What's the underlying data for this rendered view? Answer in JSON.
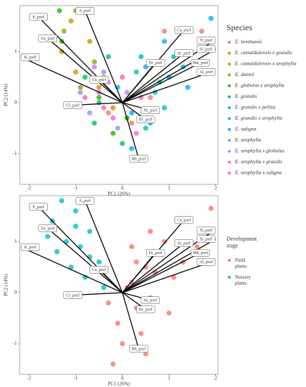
{
  "chart_data": [
    {
      "type": "scatter",
      "xlabel": "PC1 (26%)",
      "ylabel": "PC2 (14%)",
      "legend_title": "Species",
      "xlim": [
        -2.2,
        2.05
      ],
      "ylim": [
        -1.6,
        1.9
      ],
      "xticks": [
        -2,
        -1,
        0,
        1,
        2
      ],
      "yticks": [
        -1,
        0,
        1
      ],
      "series": [
        {
          "name": "E. benthamii",
          "color": "#F8766D",
          "x": [
            0.6,
            0.9,
            -0.3,
            0.2,
            1.7
          ],
          "y": [
            0.1,
            1.4,
            -0.2,
            -0.4,
            1.4
          ]
        },
        {
          "name": "E. camaldulensis x grandis",
          "color": "#E18A00",
          "x": [
            -1.0,
            -0.5,
            -0.2
          ],
          "y": [
            0.6,
            0.3,
            -0.1
          ]
        },
        {
          "name": "E. camaldulensis x urophylla",
          "color": "#BE9C00",
          "x": [
            -1.1,
            -0.7,
            -1.3,
            -0.4
          ],
          "y": [
            1.6,
            1.2,
            1.0,
            0.5
          ]
        },
        {
          "name": "E. dunnii",
          "color": "#8CAB00",
          "x": [
            -1.25,
            -0.6,
            -0.9,
            -1.0
          ],
          "y": [
            1.4,
            0.8,
            0.3,
            1.8
          ]
        },
        {
          "name": "E. globulus x urophylla",
          "color": "#24B700",
          "x": [
            -1.35,
            -0.2,
            0.1,
            -0.5,
            -1.3
          ],
          "y": [
            1.8,
            -0.6,
            -0.3,
            0.1,
            1.2
          ]
        },
        {
          "name": "E. grandis",
          "color": "#00BE70",
          "x": [
            -0.5,
            -0.8,
            0.0,
            -0.3,
            -0.6
          ],
          "y": [
            0.0,
            0.5,
            -0.8,
            0.9,
            -0.4
          ]
        },
        {
          "name": "E. grandis x pellita",
          "color": "#00C1AB",
          "x": [
            0.3,
            0.8,
            0.5,
            1.1
          ],
          "y": [
            0.6,
            0.4,
            -0.5,
            0.9
          ]
        },
        {
          "name": "E. grandis x urophylla",
          "color": "#00BBDA",
          "x": [
            0.7,
            1.3,
            0.4,
            0.9,
            -0.1
          ],
          "y": [
            0.2,
            0.7,
            0.9,
            -0.1,
            0.3
          ]
        },
        {
          "name": "E. saligna",
          "color": "#00ACFC",
          "x": [
            0.6,
            0.2,
            1.0,
            1.4,
            0.9,
            0.2,
            0.5,
            1.9
          ],
          "y": [
            -0.4,
            -0.9,
            0.5,
            0.3,
            1.2,
            -0.2,
            0.7,
            1.65
          ]
        },
        {
          "name": "E. urophylla",
          "color": "#8B93FF",
          "x": [
            -0.7,
            -0.4,
            -0.9,
            -0.1
          ],
          "y": [
            -0.2,
            0.6,
            0.2,
            -0.5
          ]
        },
        {
          "name": "E. urophylla x globulus",
          "color": "#D575FE",
          "x": [
            -0.3,
            0.1,
            -0.6
          ],
          "y": [
            0.4,
            0.2,
            0.7
          ]
        },
        {
          "name": "E. urophylla x grandis",
          "color": "#F962DD",
          "x": [
            -0.2,
            0.4,
            -0.5,
            0.3
          ],
          "y": [
            -0.3,
            0.1,
            0.2,
            -0.6
          ]
        },
        {
          "name": "E. urophylla x saligna",
          "color": "#FF65AC",
          "x": [
            -0.8,
            0.0,
            -0.4
          ],
          "y": [
            0.1,
            0.5,
            -0.1
          ]
        }
      ],
      "loadings": [
        {
          "name": "S_pxrf",
          "x": -0.8,
          "y": 1.8
        },
        {
          "name": "P_pxrf",
          "x": -1.8,
          "y": 1.68
        },
        {
          "name": "Zn_pxrf",
          "x": -1.6,
          "y": 1.26
        },
        {
          "name": "K_pxrf",
          "x": -2.17,
          "y": 0.89
        },
        {
          "name": "Cu_pxrf",
          "x": -0.5,
          "y": 0.45
        },
        {
          "name": "Cl_pxrf",
          "x": -1.06,
          "y": -0.05
        },
        {
          "name": "Ca_pxrf",
          "x": 1.32,
          "y": 1.42
        },
        {
          "name": "Ti_pxrf",
          "x": 1.97,
          "y": 1.22
        },
        {
          "name": "Sr_pxrf",
          "x": 1.32,
          "y": 0.97
        },
        {
          "name": "Si_pxrf",
          "x": 2.0,
          "y": 1.05
        },
        {
          "name": "Fe_pxrf",
          "x": 0.71,
          "y": 0.78
        },
        {
          "name": "Mn_pxrf",
          "x": 1.67,
          "y": 0.78
        },
        {
          "name": "Al_pxrf",
          "x": 1.9,
          "y": 0.6
        },
        {
          "name": "Ni_pxrf",
          "x": 0.6,
          "y": -0.15
        },
        {
          "name": "Br_pxrf",
          "x": 0.5,
          "y": -0.33
        },
        {
          "name": "Rb_pxrf",
          "x": 0.35,
          "y": -1.1
        }
      ]
    },
    {
      "type": "scatter",
      "xlabel": "PC1 (26%)",
      "ylabel": "PC2 (14%)",
      "legend_title": "Development stage",
      "xlim": [
        -2.2,
        2.05
      ],
      "ylim": [
        -1.6,
        1.9
      ],
      "xticks": [
        -2,
        -1,
        0,
        1,
        2
      ],
      "yticks": [
        -1,
        0,
        1
      ],
      "series": [
        {
          "name": "Field plants",
          "color": "#F8766D",
          "x": [
            0.2,
            0.5,
            0.8,
            1.1,
            0.3,
            -0.1,
            0.6,
            0.9,
            1.3,
            0.0,
            0.4,
            -0.3,
            0.7,
            1.0,
            0.2,
            0.5,
            1.6,
            1.9,
            0.1,
            -0.2,
            0.6,
            0.3
          ],
          "y": [
            0.2,
            0.5,
            0.8,
            0.3,
            -0.3,
            -0.6,
            -0.1,
            1.0,
            0.6,
            -1.0,
            -0.8,
            -0.2,
            0.4,
            -0.4,
            0.9,
            -1.2,
            0.9,
            1.65,
            0.1,
            -1.4,
            1.2,
            0.6
          ]
        },
        {
          "name": "Nursery plants",
          "color": "#00BFC4",
          "x": [
            -1.3,
            -1.0,
            -0.7,
            -1.5,
            -1.2,
            -0.9,
            -0.5,
            -1.1,
            -0.8,
            -1.6,
            -0.4,
            -1.0,
            -0.7,
            -1.4
          ],
          "y": [
            1.8,
            1.6,
            1.2,
            1.4,
            1.0,
            0.9,
            0.6,
            0.5,
            0.3,
            1.1,
            0.1,
            1.3,
            0.7,
            0.8
          ]
        }
      ],
      "loadings": [
        {
          "name": "S_pxrf",
          "x": -0.8,
          "y": 1.8
        },
        {
          "name": "P_pxrf",
          "x": -1.8,
          "y": 1.68
        },
        {
          "name": "Zn_pxrf",
          "x": -1.6,
          "y": 1.26
        },
        {
          "name": "K_pxrf",
          "x": -2.17,
          "y": 0.89
        },
        {
          "name": "Cu_pxrf",
          "x": -0.5,
          "y": 0.45
        },
        {
          "name": "Cl_pxrf",
          "x": -1.06,
          "y": -0.05
        },
        {
          "name": "Ca_pxrf",
          "x": 1.32,
          "y": 1.42
        },
        {
          "name": "Ti_pxrf",
          "x": 1.97,
          "y": 1.22
        },
        {
          "name": "Sr_pxrf",
          "x": 1.32,
          "y": 0.97
        },
        {
          "name": "Si_pxrf",
          "x": 2.0,
          "y": 1.05
        },
        {
          "name": "Fe_pxrf",
          "x": 0.71,
          "y": 0.78
        },
        {
          "name": "Mn_pxrf",
          "x": 1.67,
          "y": 0.78
        },
        {
          "name": "Al_pxrf",
          "x": 1.9,
          "y": 0.6
        },
        {
          "name": "Ni_pxrf",
          "x": 0.6,
          "y": -0.15
        },
        {
          "name": "Br_pxrf",
          "x": 0.5,
          "y": -0.33
        },
        {
          "name": "Rb_pxrf",
          "x": 0.35,
          "y": -1.1
        }
      ]
    }
  ]
}
